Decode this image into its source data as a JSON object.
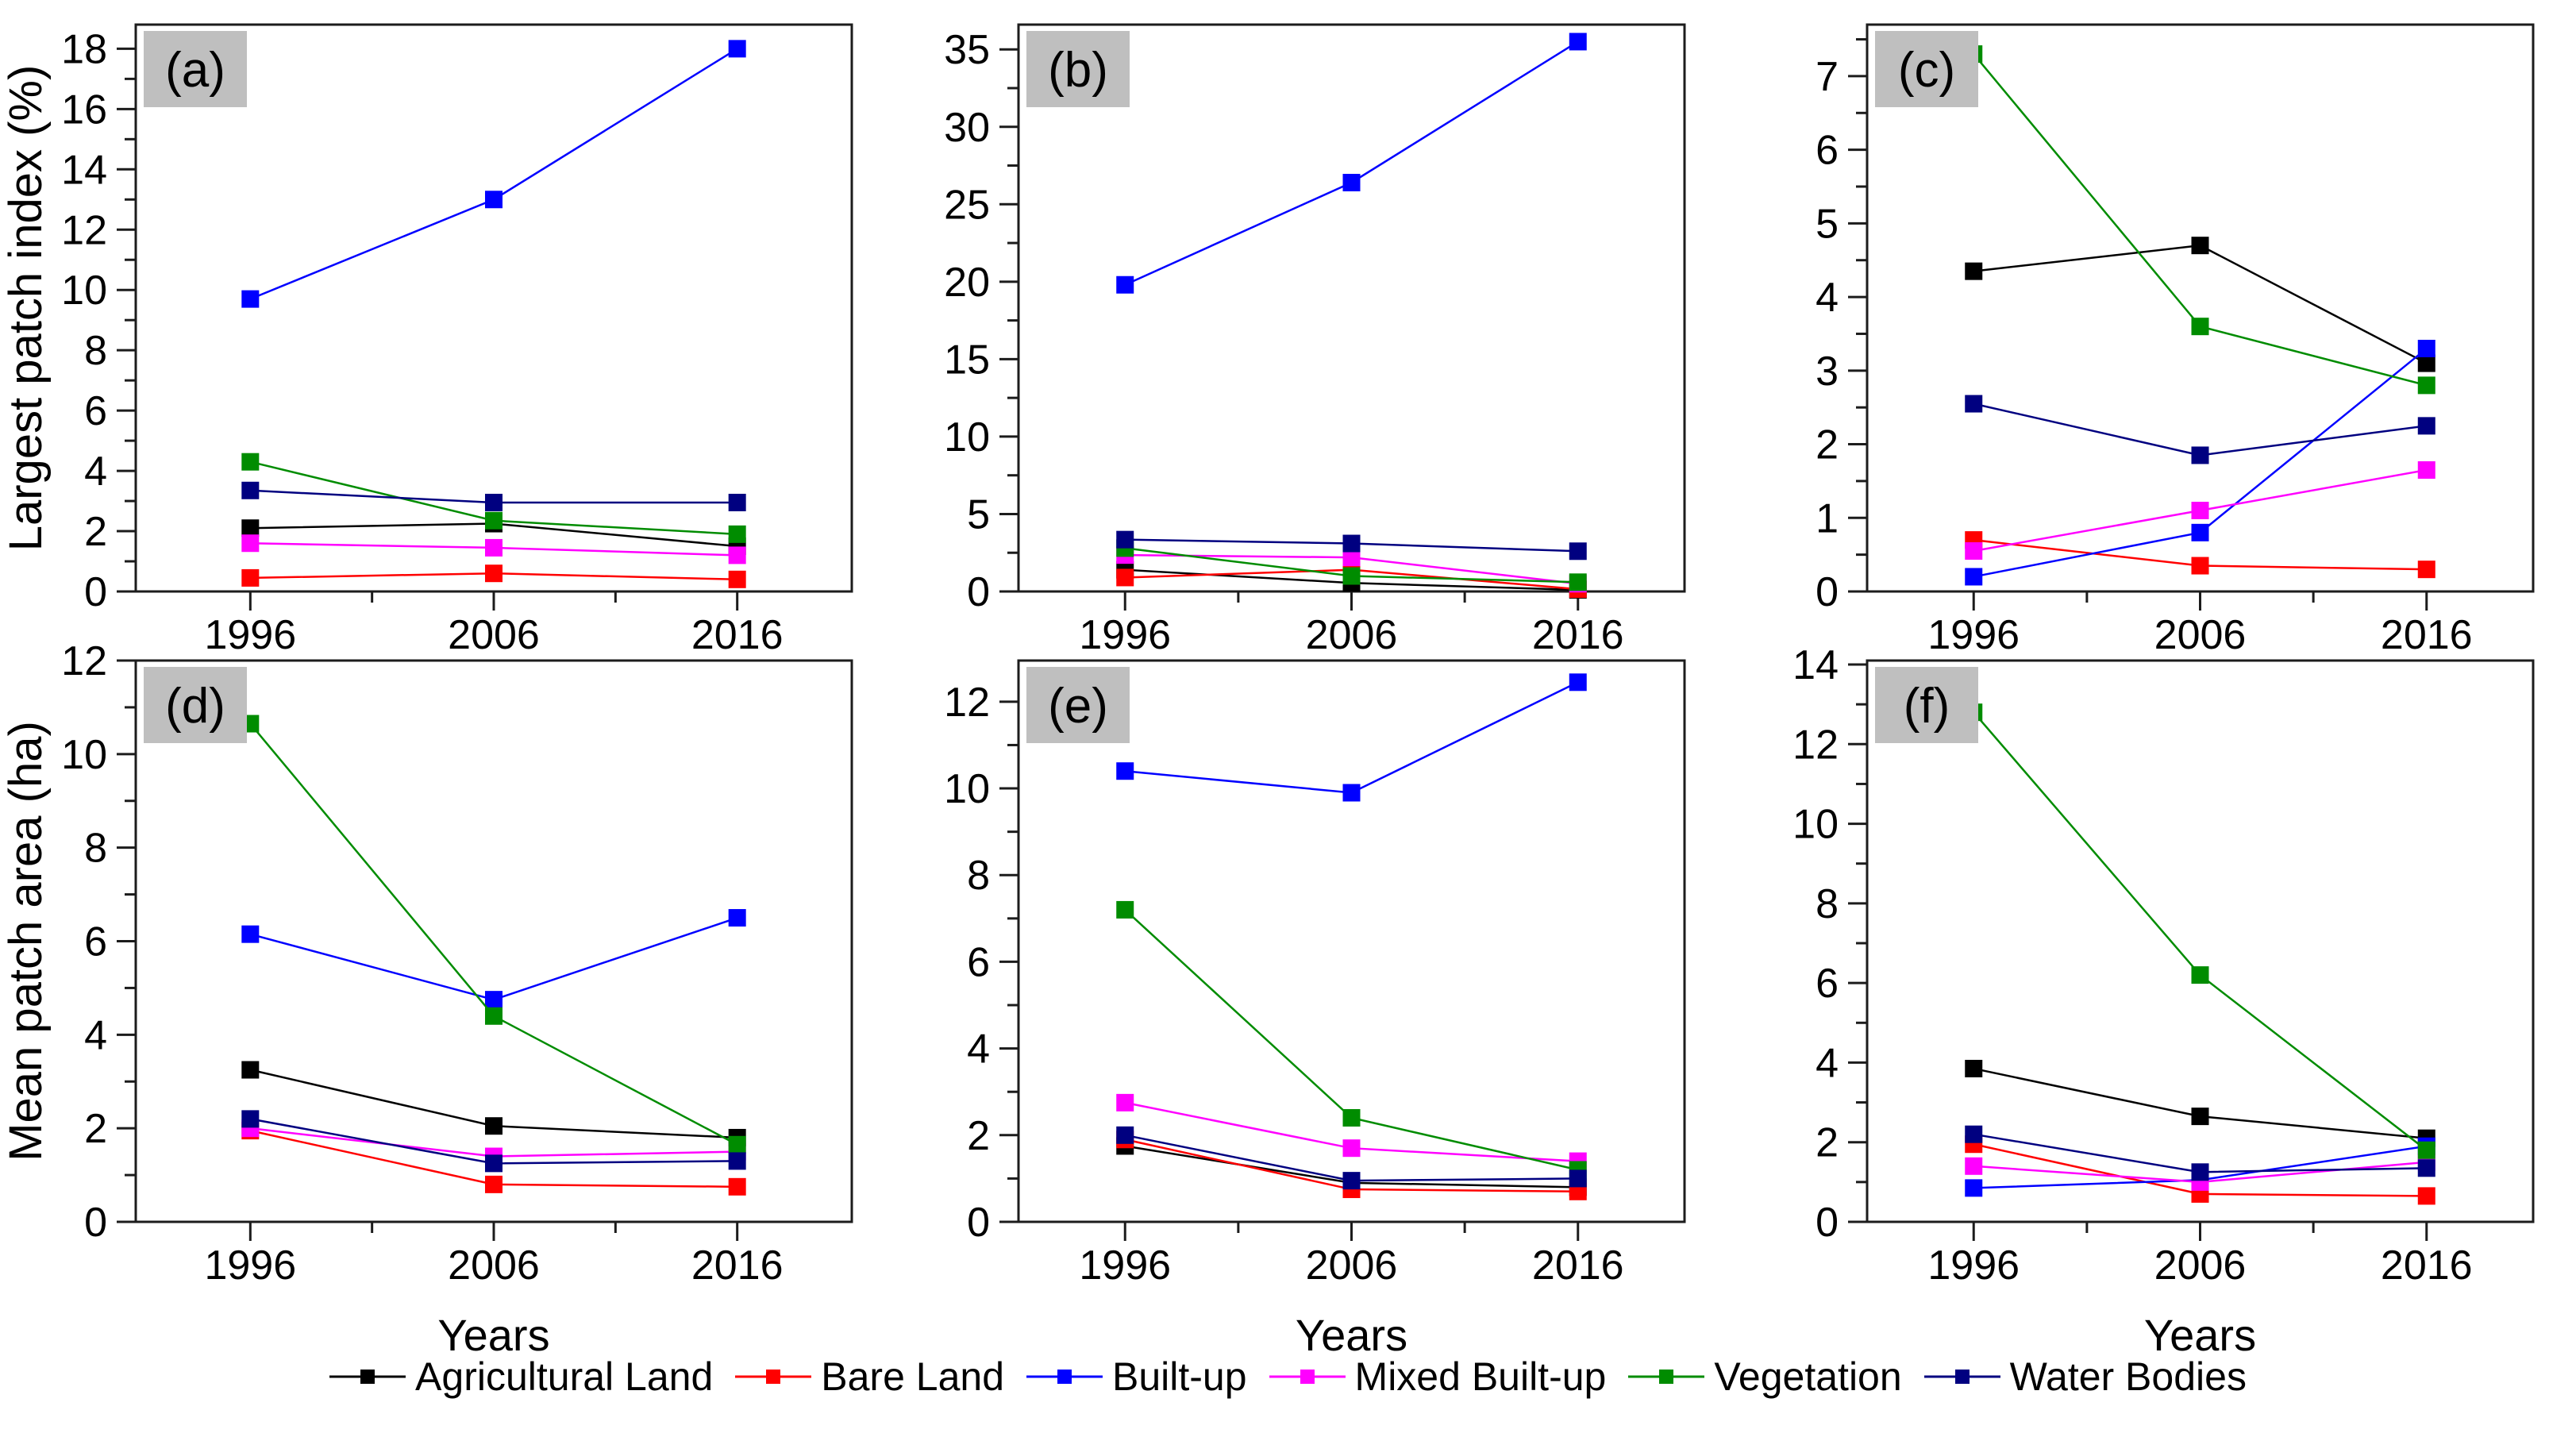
{
  "figure": {
    "ylabel_top": "Largest patch index (%)",
    "ylabel_bottom": "Mean patch area (ha)",
    "xlabel": "Years",
    "years": [
      "1996",
      "2006",
      "2016"
    ],
    "panel_label_bg": "#BFBFBF",
    "axis_color": "#1c1c1c"
  },
  "chart_data": [
    {
      "id": "a",
      "type": "line",
      "panel_label": "(a)",
      "ylabel": "Largest patch index (%)",
      "xlabel": "",
      "x": [
        1996,
        2006,
        2016
      ],
      "ylim": [
        0,
        18.8
      ],
      "ytick_step": 2,
      "ytick_max": 18,
      "grid": false,
      "series": [
        {
          "name": "Agricultural Land",
          "color": "#000000",
          "values": [
            2.1,
            2.25,
            1.5
          ]
        },
        {
          "name": "Bare Land",
          "color": "#FF0000",
          "values": [
            0.45,
            0.6,
            0.4
          ]
        },
        {
          "name": "Built-up",
          "color": "#0000FF",
          "values": [
            9.7,
            13.0,
            18.0
          ]
        },
        {
          "name": "Mixed Built-up",
          "color": "#FF00FF",
          "values": [
            1.6,
            1.45,
            1.2
          ]
        },
        {
          "name": "Vegetation",
          "color": "#008C00",
          "values": [
            4.3,
            2.35,
            1.9
          ]
        },
        {
          "name": "Water Bodies",
          "color": "#000080",
          "values": [
            3.35,
            2.95,
            2.95
          ]
        }
      ]
    },
    {
      "id": "b",
      "type": "line",
      "panel_label": "(b)",
      "ylabel": "",
      "xlabel": "",
      "x": [
        1996,
        2006,
        2016
      ],
      "ylim": [
        0,
        36.6
      ],
      "ytick_step": 5,
      "ytick_max": 35,
      "grid": false,
      "series": [
        {
          "name": "Agricultural Land",
          "color": "#000000",
          "values": [
            1.4,
            0.55,
            0.1
          ]
        },
        {
          "name": "Bare Land",
          "color": "#FF0000",
          "values": [
            0.9,
            1.4,
            0.15
          ]
        },
        {
          "name": "Built-up",
          "color": "#0000FF",
          "values": [
            19.8,
            26.4,
            35.5
          ]
        },
        {
          "name": "Mixed Built-up",
          "color": "#FF00FF",
          "values": [
            2.35,
            2.2,
            0.5
          ]
        },
        {
          "name": "Vegetation",
          "color": "#008C00",
          "values": [
            2.8,
            1.0,
            0.6
          ]
        },
        {
          "name": "Water Bodies",
          "color": "#000080",
          "values": [
            3.35,
            3.1,
            2.6
          ]
        }
      ]
    },
    {
      "id": "c",
      "type": "line",
      "panel_label": "(c)",
      "ylabel": "",
      "xlabel": "",
      "x": [
        1996,
        2006,
        2016
      ],
      "ylim": [
        0,
        7.7
      ],
      "ytick_step": 1,
      "ytick_max": 7,
      "grid": false,
      "series": [
        {
          "name": "Agricultural Land",
          "color": "#000000",
          "values": [
            4.35,
            4.7,
            3.1
          ]
        },
        {
          "name": "Bare Land",
          "color": "#FF0000",
          "values": [
            0.7,
            0.35,
            0.3
          ]
        },
        {
          "name": "Built-up",
          "color": "#0000FF",
          "values": [
            0.2,
            0.8,
            3.3
          ]
        },
        {
          "name": "Mixed Built-up",
          "color": "#FF00FF",
          "values": [
            0.55,
            1.1,
            1.65
          ]
        },
        {
          "name": "Vegetation",
          "color": "#008C00",
          "values": [
            7.3,
            3.6,
            2.8
          ]
        },
        {
          "name": "Water Bodies",
          "color": "#000080",
          "values": [
            2.55,
            1.85,
            2.25
          ]
        }
      ]
    },
    {
      "id": "d",
      "type": "line",
      "panel_label": "(d)",
      "ylabel": "Mean patch area (ha)",
      "xlabel": "Years",
      "x": [
        1996,
        2006,
        2016
      ],
      "ylim": [
        0,
        12.0
      ],
      "ytick_step": 2,
      "ytick_max": 12,
      "grid": false,
      "series": [
        {
          "name": "Agricultural Land",
          "color": "#000000",
          "values": [
            3.25,
            2.05,
            1.8
          ]
        },
        {
          "name": "Bare Land",
          "color": "#FF0000",
          "values": [
            1.95,
            0.8,
            0.75
          ]
        },
        {
          "name": "Built-up",
          "color": "#0000FF",
          "values": [
            6.15,
            4.75,
            6.5
          ]
        },
        {
          "name": "Mixed Built-up",
          "color": "#FF00FF",
          "values": [
            2.0,
            1.4,
            1.5
          ]
        },
        {
          "name": "Vegetation",
          "color": "#008C00",
          "values": [
            10.65,
            4.4,
            1.65
          ]
        },
        {
          "name": "Water Bodies",
          "color": "#000080",
          "values": [
            2.2,
            1.25,
            1.3
          ]
        }
      ]
    },
    {
      "id": "e",
      "type": "line",
      "panel_label": "(e)",
      "ylabel": "",
      "xlabel": "Years",
      "x": [
        1996,
        2006,
        2016
      ],
      "ylim": [
        0,
        12.95
      ],
      "ytick_step": 2,
      "ytick_max": 12,
      "grid": false,
      "series": [
        {
          "name": "Agricultural Land",
          "color": "#000000",
          "values": [
            1.75,
            0.9,
            0.8
          ]
        },
        {
          "name": "Bare Land",
          "color": "#FF0000",
          "values": [
            1.9,
            0.75,
            0.7
          ]
        },
        {
          "name": "Built-up",
          "color": "#0000FF",
          "values": [
            10.4,
            9.9,
            12.45
          ]
        },
        {
          "name": "Mixed Built-up",
          "color": "#FF00FF",
          "values": [
            2.75,
            1.7,
            1.4
          ]
        },
        {
          "name": "Vegetation",
          "color": "#008C00",
          "values": [
            7.2,
            2.4,
            1.2
          ]
        },
        {
          "name": "Water Bodies",
          "color": "#000080",
          "values": [
            2.0,
            0.95,
            1.0
          ]
        }
      ]
    },
    {
      "id": "f",
      "type": "line",
      "panel_label": "(f)",
      "ylabel": "",
      "xlabel": "Years",
      "x": [
        1996,
        2006,
        2016
      ],
      "ylim": [
        0,
        14.1
      ],
      "ytick_step": 2,
      "ytick_max": 14,
      "grid": false,
      "series": [
        {
          "name": "Agricultural Land",
          "color": "#000000",
          "values": [
            3.85,
            2.65,
            2.1
          ]
        },
        {
          "name": "Bare Land",
          "color": "#FF0000",
          "values": [
            1.95,
            0.7,
            0.65
          ]
        },
        {
          "name": "Built-up",
          "color": "#0000FF",
          "values": [
            0.85,
            1.05,
            1.9
          ]
        },
        {
          "name": "Mixed Built-up",
          "color": "#FF00FF",
          "values": [
            1.4,
            1.0,
            1.5
          ]
        },
        {
          "name": "Vegetation",
          "color": "#008C00",
          "values": [
            12.8,
            6.2,
            1.8
          ]
        },
        {
          "name": "Water Bodies",
          "color": "#000080",
          "values": [
            2.2,
            1.25,
            1.35
          ]
        }
      ]
    }
  ],
  "legend": {
    "entries": [
      {
        "label": "Agricultural Land",
        "color": "#000000"
      },
      {
        "label": "Bare Land",
        "color": "#FF0000"
      },
      {
        "label": "Built-up",
        "color": "#0000FF"
      },
      {
        "label": "Mixed Built-up",
        "color": "#FF00FF"
      },
      {
        "label": "Vegetation",
        "color": "#008C00"
      },
      {
        "label": "Water Bodies",
        "color": "#000080"
      }
    ]
  }
}
